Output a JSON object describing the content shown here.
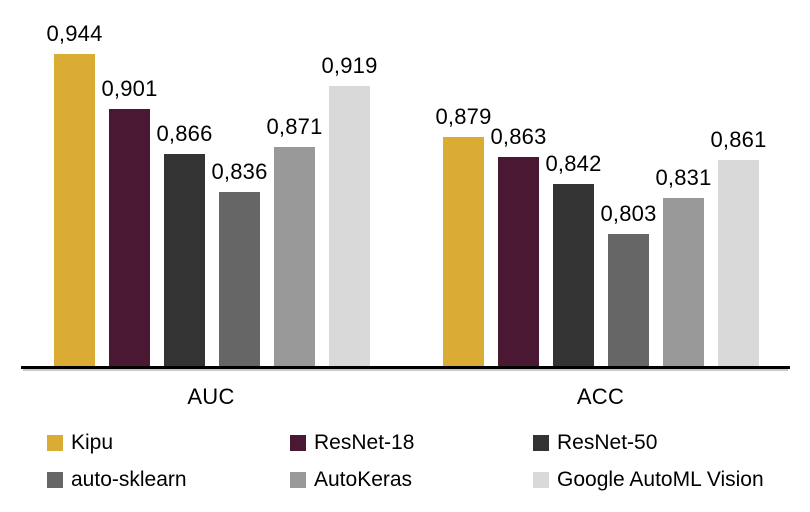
{
  "chart_data": {
    "type": "bar",
    "title": "",
    "categories": [
      "AUC",
      "ACC"
    ],
    "series": [
      {
        "name": "Kipu",
        "color": "#DBAC34",
        "values": [
          0.944,
          0.879
        ],
        "labels": [
          "0,944",
          "0,879"
        ]
      },
      {
        "name": "ResNet-18",
        "color": "#4A1833",
        "values": [
          0.901,
          0.863
        ],
        "labels": [
          "0,901",
          "0,863"
        ]
      },
      {
        "name": "ResNet-50",
        "color": "#333333",
        "values": [
          0.866,
          0.842
        ],
        "labels": [
          "0,866",
          "0,842"
        ]
      },
      {
        "name": "auto-sklearn",
        "color": "#666666",
        "values": [
          0.836,
          0.803
        ],
        "labels": [
          "0,836",
          "0,803"
        ]
      },
      {
        "name": "AutoKeras",
        "color": "#999999",
        "values": [
          0.871,
          0.831
        ],
        "labels": [
          "0,871",
          "0,831"
        ]
      },
      {
        "name": "Google AutoML Vision",
        "color": "#D9D9D9",
        "values": [
          0.919,
          0.861
        ],
        "labels": [
          "0,919",
          "0,861"
        ]
      }
    ],
    "value_format": "comma-decimal",
    "ylim": [
      0.7,
      0.96
    ],
    "grid": false,
    "axis_color": "#000000",
    "background_color": "#ffffff",
    "legend_position": "bottom"
  }
}
